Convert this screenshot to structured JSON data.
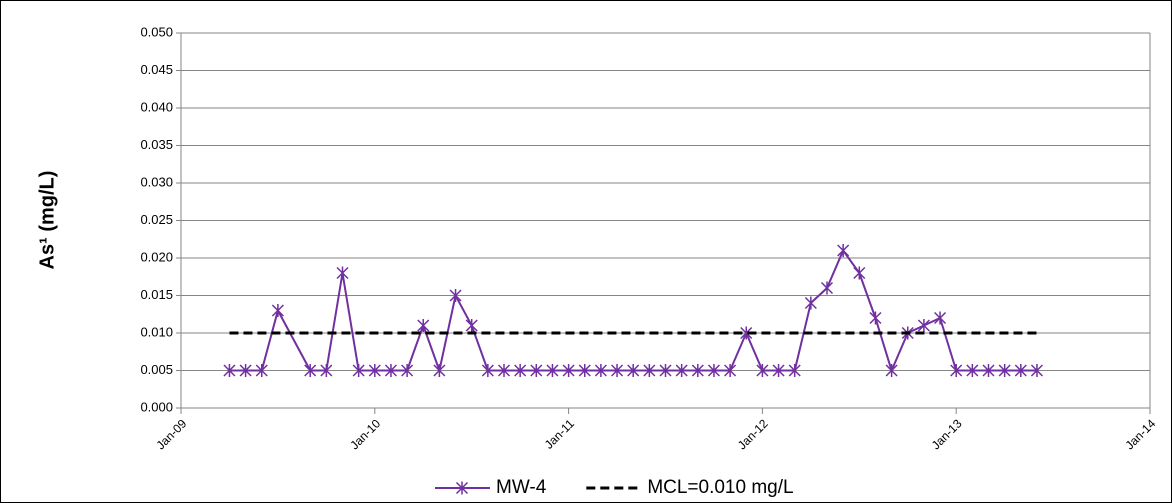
{
  "chart_data": {
    "type": "line",
    "y_label": "As¹ (mg/L)",
    "xlim": [
      "2009-01",
      "2014-01"
    ],
    "xticks": [
      {
        "value": "2009-01",
        "label": "Jan-09"
      },
      {
        "value": "2010-01",
        "label": "Jan-10"
      },
      {
        "value": "2011-01",
        "label": "Jan-11"
      },
      {
        "value": "2012-01",
        "label": "Jan-12"
      },
      {
        "value": "2013-01",
        "label": "Jan-13"
      },
      {
        "value": "2014-01",
        "label": "Jan-14"
      }
    ],
    "ylim": [
      0,
      0.05
    ],
    "yticks": [
      {
        "value": 0,
        "label": "0.000"
      },
      {
        "value": 0.005,
        "label": "0.005"
      },
      {
        "value": 0.01,
        "label": "0.010"
      },
      {
        "value": 0.015,
        "label": "0.015"
      },
      {
        "value": 0.02,
        "label": "0.020"
      },
      {
        "value": 0.025,
        "label": "0.025"
      },
      {
        "value": 0.03,
        "label": "0.030"
      },
      {
        "value": 0.035,
        "label": "0.035"
      },
      {
        "value": 0.04,
        "label": "0.040"
      },
      {
        "value": 0.045,
        "label": "0.045"
      },
      {
        "value": 0.05,
        "label": "0.050"
      }
    ],
    "grid": true,
    "legend": "bottom",
    "series": [
      {
        "name": "MW-4",
        "color": "#7030a0",
        "marker": "asterisk",
        "dash": false,
        "x": [
          "2009-04",
          "2009-05",
          "2009-06",
          "2009-07",
          "2009-09",
          "2009-10",
          "2009-11",
          "2009-12",
          "2010-01",
          "2010-02",
          "2010-03",
          "2010-04",
          "2010-05",
          "2010-06",
          "2010-07",
          "2010-08",
          "2010-09",
          "2010-10",
          "2010-11",
          "2010-12",
          "2011-01",
          "2011-02",
          "2011-03",
          "2011-04",
          "2011-05",
          "2011-06",
          "2011-07",
          "2011-08",
          "2011-09",
          "2011-10",
          "2011-11",
          "2011-12",
          "2012-01",
          "2012-02",
          "2012-03",
          "2012-04",
          "2012-05",
          "2012-06",
          "2012-07",
          "2012-08",
          "2012-09",
          "2012-10",
          "2012-11",
          "2012-12",
          "2013-01",
          "2013-02",
          "2013-03",
          "2013-04",
          "2013-05",
          "2013-06"
        ],
        "values": [
          0.005,
          0.005,
          0.005,
          0.013,
          0.005,
          0.005,
          0.018,
          0.005,
          0.005,
          0.005,
          0.005,
          0.011,
          0.005,
          0.015,
          0.011,
          0.005,
          0.005,
          0.005,
          0.005,
          0.005,
          0.005,
          0.005,
          0.005,
          0.005,
          0.005,
          0.005,
          0.005,
          0.005,
          0.005,
          0.005,
          0.005,
          0.01,
          0.005,
          0.005,
          0.005,
          0.014,
          0.016,
          0.021,
          0.018,
          0.012,
          0.005,
          0.01,
          0.011,
          0.012,
          0.005,
          0.005,
          0.005,
          0.005,
          0.005,
          0.005
        ]
      },
      {
        "name": "MCL=0.010 mg/L",
        "color": "#000000",
        "marker": "none",
        "dash": true,
        "x": [
          "2009-04",
          "2013-06"
        ],
        "values": [
          0.01,
          0.01
        ]
      }
    ]
  }
}
